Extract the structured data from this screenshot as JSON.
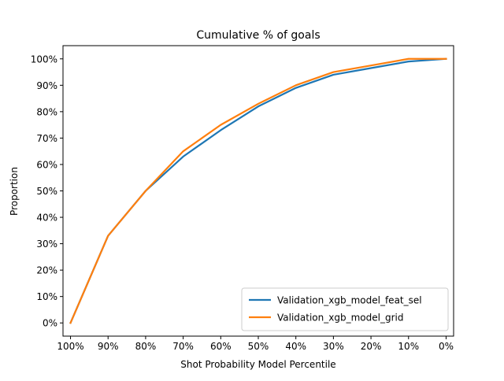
{
  "chart_data": {
    "type": "line",
    "title": "Cumulative % of goals",
    "xlabel": "Shot Probability Model Percentile",
    "ylabel": "Proportion",
    "x": [
      100,
      90,
      80,
      70,
      60,
      50,
      40,
      30,
      20,
      10,
      0
    ],
    "x_tick_labels": [
      "100%",
      "90%",
      "80%",
      "70%",
      "60%",
      "50%",
      "40%",
      "30%",
      "20%",
      "10%",
      "0%"
    ],
    "xlim": [
      102,
      -2
    ],
    "ylim": [
      -0.05,
      1.05
    ],
    "y_ticks": [
      0,
      0.1,
      0.2,
      0.3,
      0.4,
      0.5,
      0.6,
      0.7,
      0.8,
      0.9,
      1.0
    ],
    "y_tick_labels": [
      "0%",
      "10%",
      "20%",
      "30%",
      "40%",
      "50%",
      "60%",
      "70%",
      "80%",
      "90%",
      "100%"
    ],
    "grid": false,
    "legend_position": "bottom-right",
    "series": [
      {
        "name": "Validation_xgb_model_feat_sel",
        "color": "#1f77b4",
        "values": [
          0.0,
          0.33,
          0.5,
          0.63,
          0.73,
          0.82,
          0.89,
          0.94,
          0.965,
          0.99,
          1.0
        ]
      },
      {
        "name": "Validation_xgb_model_grid",
        "color": "#ff7f0e",
        "values": [
          0.0,
          0.33,
          0.5,
          0.65,
          0.75,
          0.83,
          0.9,
          0.95,
          0.975,
          1.0,
          1.0
        ]
      }
    ]
  }
}
